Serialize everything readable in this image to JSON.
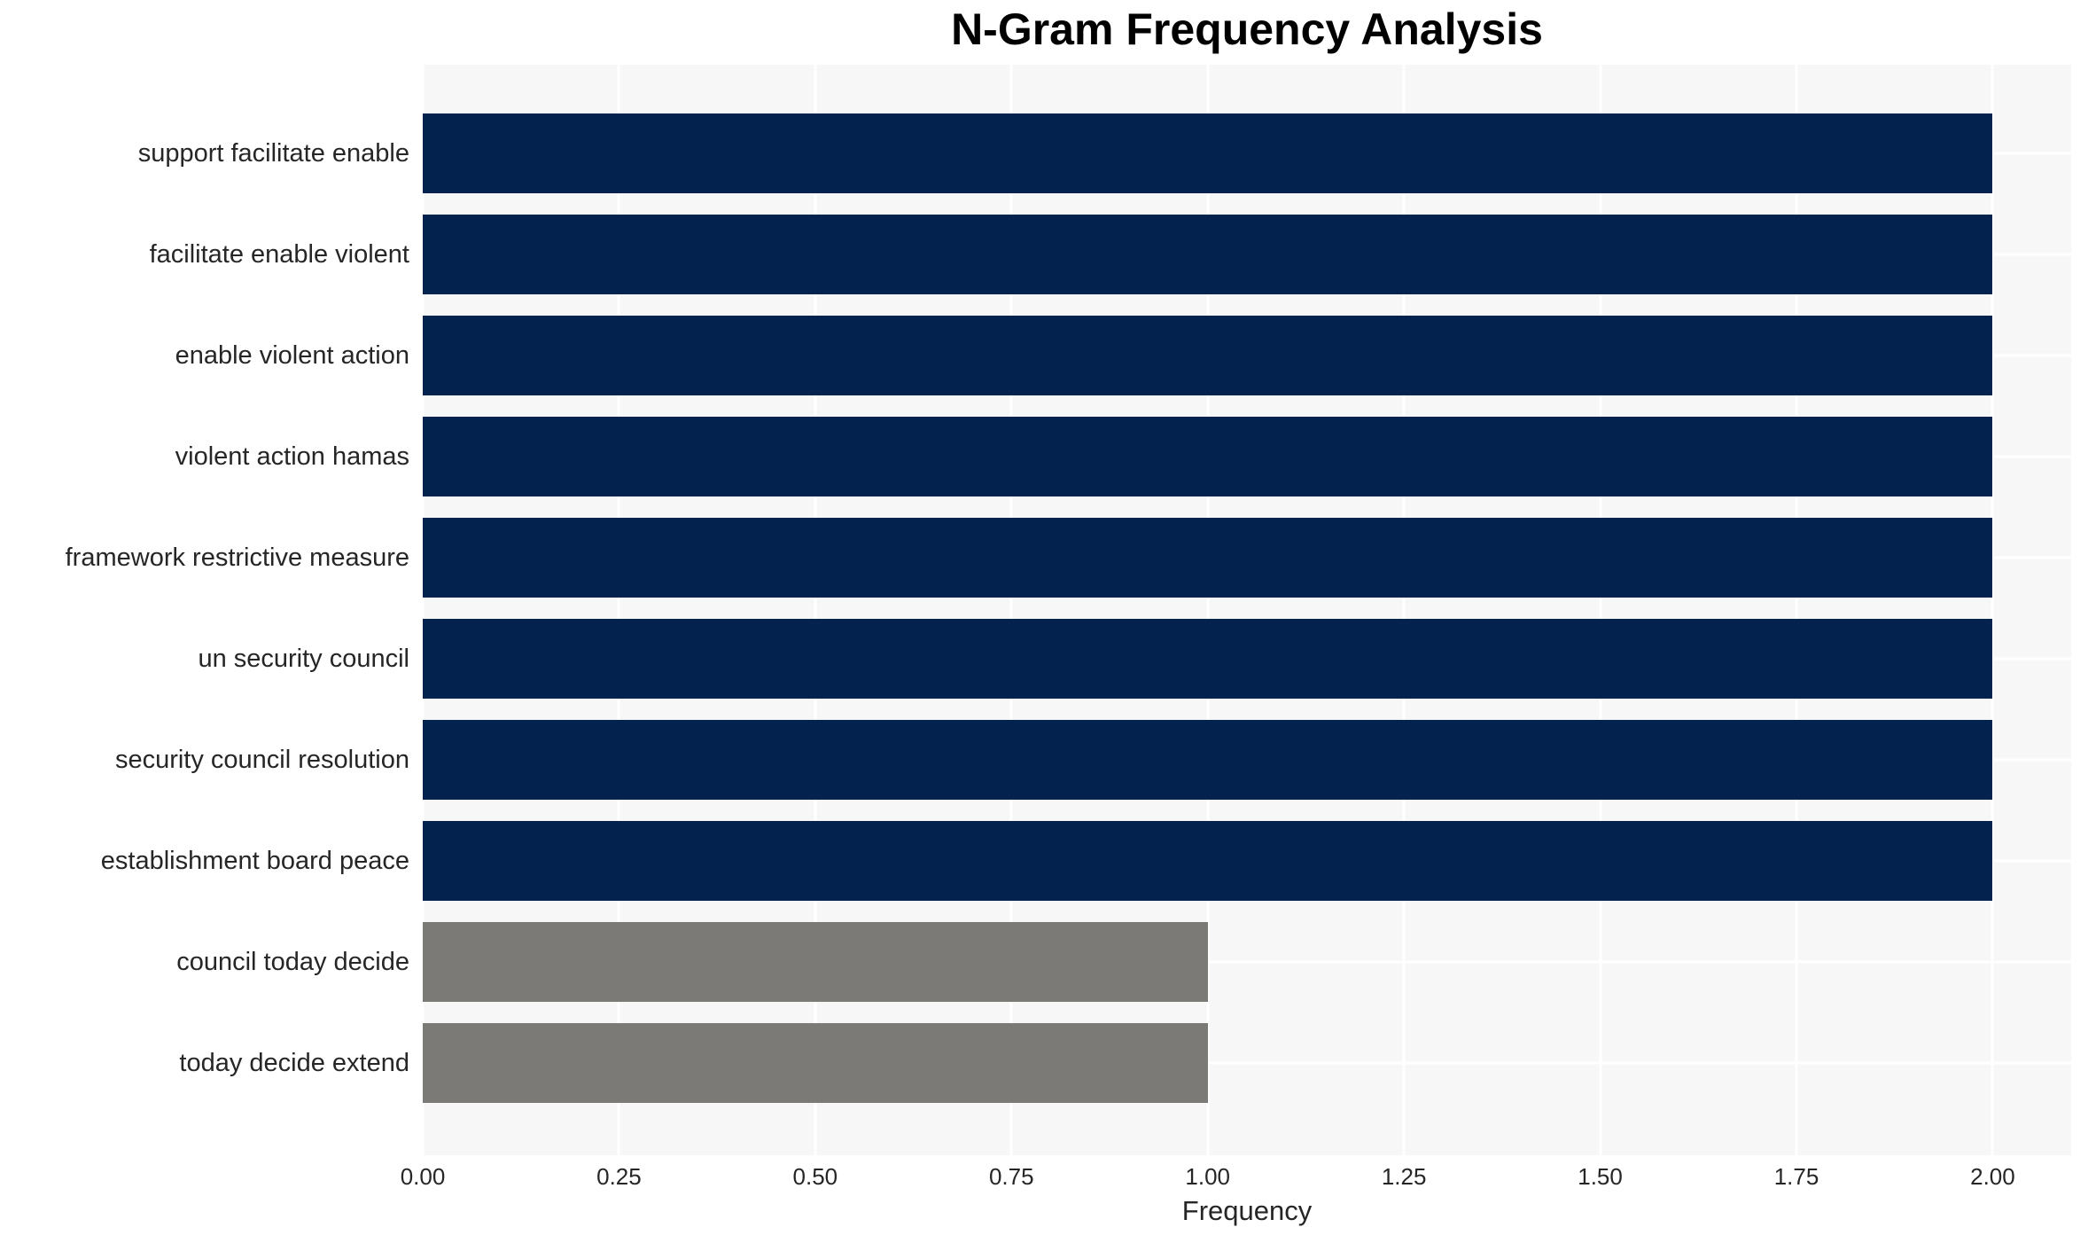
{
  "chart_data": {
    "type": "bar",
    "orientation": "horizontal",
    "title": "N-Gram Frequency Analysis",
    "xlabel": "Frequency",
    "ylabel": "",
    "categories": [
      "support facilitate enable",
      "facilitate enable violent",
      "enable violent action",
      "violent action hamas",
      "framework restrictive measure",
      "un security council",
      "security council resolution",
      "establishment board peace",
      "council today decide",
      "today decide extend"
    ],
    "values": [
      2,
      2,
      2,
      2,
      2,
      2,
      2,
      2,
      1,
      1
    ],
    "bar_colors": [
      "#03224d",
      "#03224d",
      "#03224d",
      "#03224d",
      "#03224d",
      "#03224d",
      "#03224d",
      "#03224d",
      "#7b7a76",
      "#7b7a76"
    ],
    "xlim": [
      0,
      2.1
    ],
    "xticks": [
      0,
      0.25,
      0.5,
      0.75,
      1,
      1.25,
      1.5,
      1.75,
      2
    ],
    "xtick_labels": [
      "0.00",
      "0.25",
      "0.50",
      "0.75",
      "1.00",
      "1.25",
      "1.50",
      "1.75",
      "2.00"
    ],
    "grid": {
      "color": "#ffffff",
      "vertical": true,
      "horizontal": true
    },
    "legend": null,
    "colors": {
      "page_bg": "#ffffff",
      "plot_bg": "#f7f7f7",
      "grid": "#ffffff",
      "tick_text": "#262626",
      "title_text": "#000000"
    }
  }
}
